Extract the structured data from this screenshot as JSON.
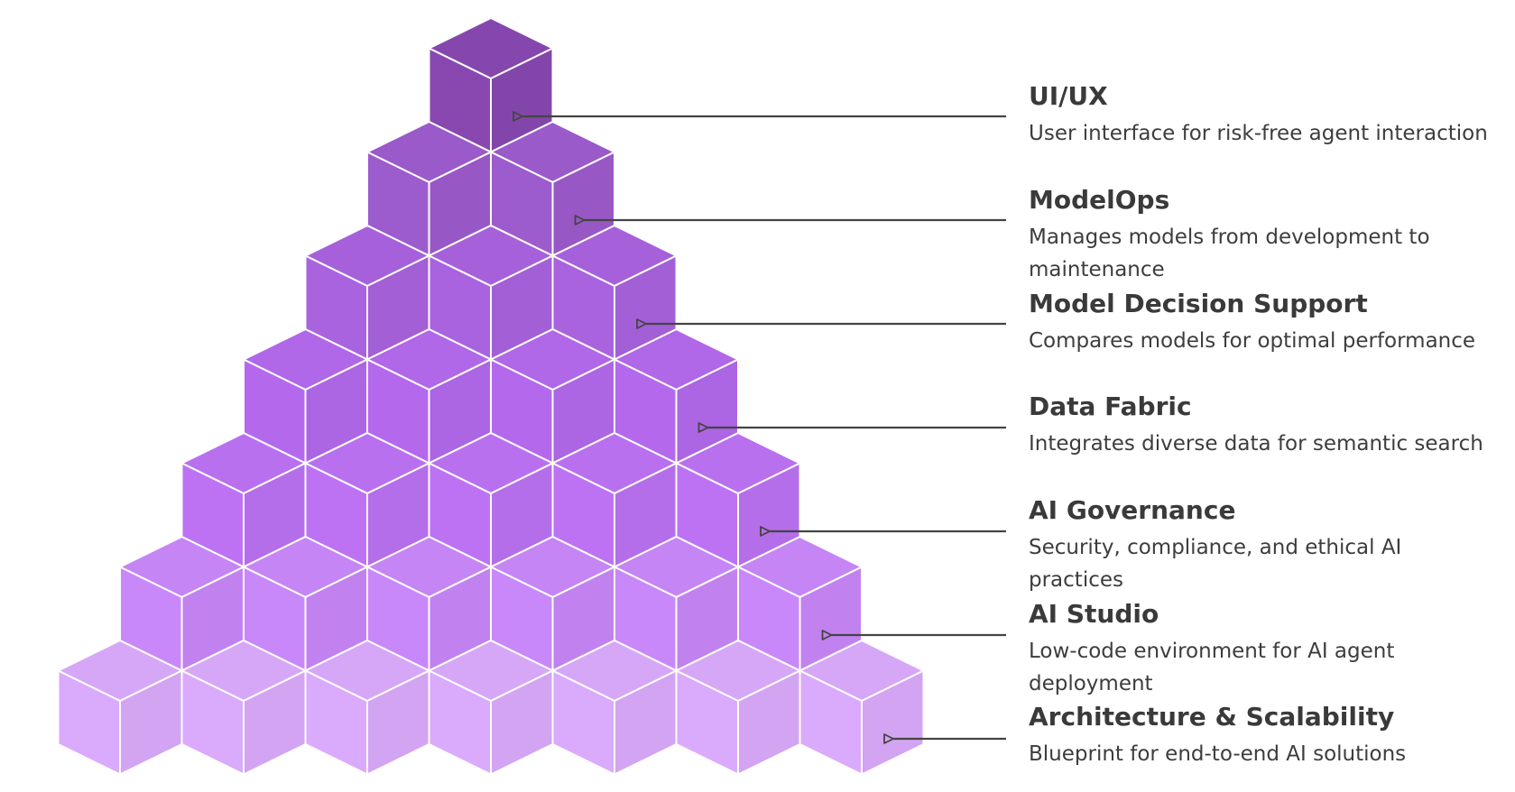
{
  "colors": {
    "rows": [
      "#8547ad",
      "#9a5ac9",
      "#a661da",
      "#b067e8",
      "#b970ef",
      "#c585f4",
      "#d6a7f7"
    ],
    "edge": "#ffffff",
    "arrow": "#444444",
    "text": "#3a3a3a"
  },
  "layers": [
    {
      "title": "UI/UX",
      "description": "User interface for risk-free agent interaction",
      "icon": "arrow-left-icon"
    },
    {
      "title": "ModelOps",
      "description": "Manages models from development to maintenance",
      "icon": "arrow-left-icon"
    },
    {
      "title": "Model Decision Support",
      "description": "Compares models for optimal performance",
      "icon": "arrow-left-icon"
    },
    {
      "title": "Data Fabric",
      "description": "Integrates diverse data for semantic search",
      "icon": "arrow-left-icon"
    },
    {
      "title": "AI Governance",
      "description": "Security, compliance, and ethical AI practices",
      "icon": "arrow-left-icon"
    },
    {
      "title": "AI Studio",
      "description": "Low-code environment for AI agent deployment",
      "icon": "arrow-left-icon"
    },
    {
      "title": "Architecture & Scalability",
      "description": "Blueprint for end-to-end AI solutions",
      "icon": "arrow-left-icon"
    }
  ]
}
